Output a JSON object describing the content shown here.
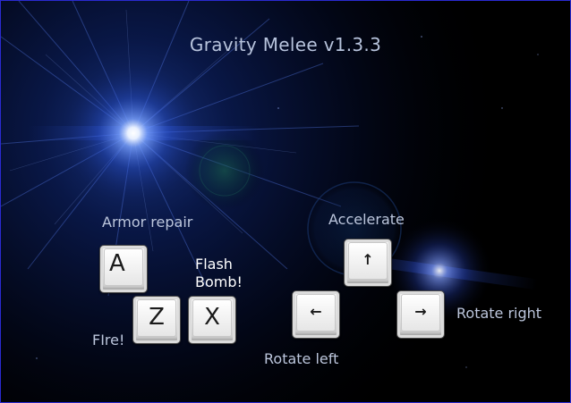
{
  "title": "Gravity Melee v1.3.3",
  "labels": {
    "armor_repair": "Armor repair",
    "flash_bomb_line1": "Flash",
    "flash_bomb_line2": "Bomb!",
    "fire": "FIre!",
    "accelerate": "Accelerate",
    "rotate_left": "Rotate left",
    "rotate_right": "Rotate right"
  },
  "keys": {
    "armor": "A",
    "fire": "Z",
    "bomb": "X",
    "accelerate": "↑",
    "rotate_left": "←",
    "rotate_right": "→"
  },
  "colors": {
    "title": "#b7c3dc",
    "label": "#bcc6dc",
    "highlight_label": "#ffffff",
    "border": "#2a2ad0"
  }
}
